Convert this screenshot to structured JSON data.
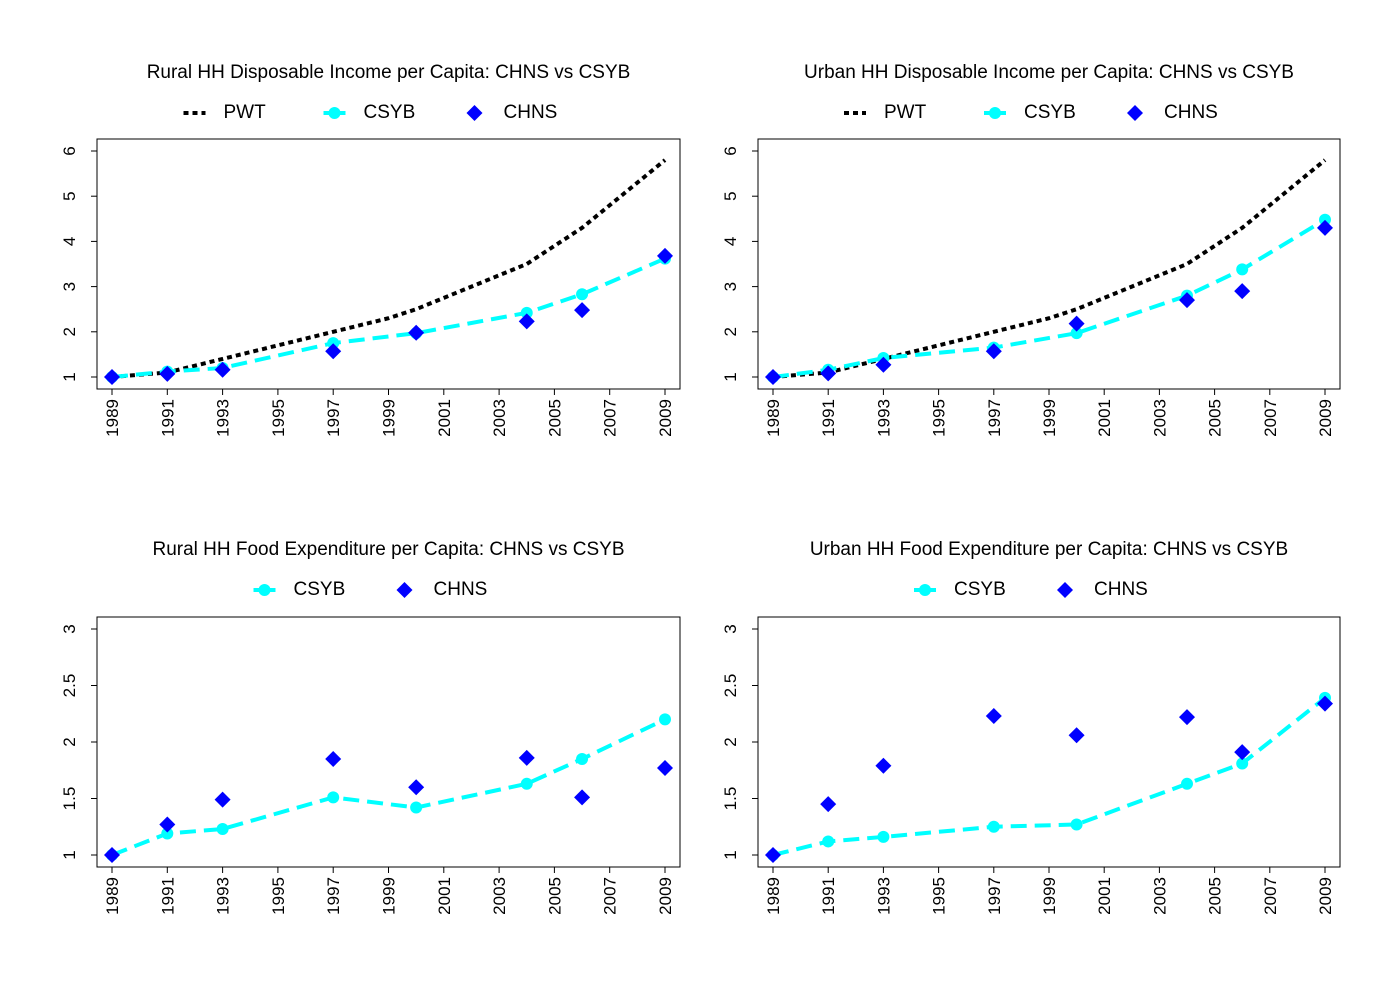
{
  "chart_data": [
    {
      "type": "line",
      "title": "Rural HH Disposable Income per Capita: CHNS vs CSYB",
      "xlabel": "",
      "ylabel": "",
      "xlim": [
        1989,
        2009
      ],
      "ylim": [
        1,
        6
      ],
      "x_ticks": [
        "1989",
        "1991",
        "1993",
        "1995",
        "1997",
        "1999",
        "2001",
        "2003",
        "2005",
        "2007",
        "2009"
      ],
      "y_ticks": [
        "1",
        "2",
        "3",
        "4",
        "5",
        "6"
      ],
      "legend": [
        "PWT",
        "CSYB",
        "CHNS"
      ],
      "legend_position": "top",
      "grid": false,
      "series": [
        {
          "name": "PWT",
          "style": "dotted-line",
          "color": "#000000",
          "x": [
            1989,
            1991,
            1993,
            1995,
            1997,
            1999,
            2000,
            2002,
            2004,
            2006,
            2009
          ],
          "y": [
            1.0,
            1.1,
            1.4,
            1.7,
            2.0,
            2.3,
            2.5,
            3.0,
            3.5,
            4.3,
            5.8
          ]
        },
        {
          "name": "CSYB",
          "style": "dashed-line-circles",
          "color": "#00FFFF",
          "x": [
            1989,
            1991,
            1993,
            1997,
            2000,
            2004,
            2006,
            2009
          ],
          "y": [
            1.0,
            1.12,
            1.2,
            1.75,
            1.97,
            2.42,
            2.83,
            3.62
          ]
        },
        {
          "name": "CHNS",
          "style": "diamonds",
          "color": "#0000FF",
          "x": [
            1989,
            1991,
            1993,
            1997,
            2000,
            2004,
            2006,
            2009
          ],
          "y": [
            1.0,
            1.07,
            1.16,
            1.57,
            1.98,
            2.23,
            2.48,
            3.68
          ]
        }
      ]
    },
    {
      "type": "line",
      "title": "Urban HH Disposable Income per Capita: CHNS vs CSYB",
      "xlabel": "",
      "ylabel": "",
      "xlim": [
        1989,
        2009
      ],
      "ylim": [
        1,
        6
      ],
      "x_ticks": [
        "1989",
        "1991",
        "1993",
        "1995",
        "1997",
        "1999",
        "2001",
        "2003",
        "2005",
        "2007",
        "2009"
      ],
      "y_ticks": [
        "1",
        "2",
        "3",
        "4",
        "5",
        "6"
      ],
      "legend": [
        "PWT",
        "CSYB",
        "CHNS"
      ],
      "legend_position": "top",
      "grid": false,
      "series": [
        {
          "name": "PWT",
          "style": "dotted-line",
          "color": "#000000",
          "x": [
            1989,
            1991,
            1993,
            1995,
            1997,
            1999,
            2000,
            2002,
            2004,
            2006,
            2009
          ],
          "y": [
            1.0,
            1.1,
            1.4,
            1.7,
            2.0,
            2.3,
            2.5,
            3.0,
            3.5,
            4.3,
            5.8
          ]
        },
        {
          "name": "CSYB",
          "style": "dashed-line-circles",
          "color": "#00FFFF",
          "x": [
            1989,
            1991,
            1993,
            1997,
            2000,
            2004,
            2006,
            2009
          ],
          "y": [
            1.0,
            1.16,
            1.42,
            1.65,
            1.97,
            2.8,
            3.38,
            4.48
          ]
        },
        {
          "name": "CHNS",
          "style": "diamonds",
          "color": "#0000FF",
          "x": [
            1989,
            1991,
            1993,
            1997,
            2000,
            2004,
            2006,
            2009
          ],
          "y": [
            1.0,
            1.08,
            1.27,
            1.57,
            2.18,
            2.7,
            2.9,
            4.3
          ]
        }
      ]
    },
    {
      "type": "line",
      "title": "Rural HH Food Expenditure per Capita: CHNS vs CSYB",
      "xlabel": "",
      "ylabel": "",
      "xlim": [
        1989,
        2009
      ],
      "ylim": [
        1,
        3
      ],
      "x_ticks": [
        "1989",
        "1991",
        "1993",
        "1995",
        "1997",
        "1999",
        "2001",
        "2003",
        "2005",
        "2007",
        "2009"
      ],
      "y_ticks": [
        "1",
        "1.5",
        "2",
        "2.5",
        "3"
      ],
      "legend": [
        "CSYB",
        "CHNS"
      ],
      "legend_position": "top",
      "grid": false,
      "series": [
        {
          "name": "CSYB",
          "style": "dashed-line-circles",
          "color": "#00FFFF",
          "x": [
            1989,
            1991,
            1993,
            1997,
            2000,
            2004,
            2006,
            2009
          ],
          "y": [
            1.0,
            1.19,
            1.23,
            1.51,
            1.42,
            1.63,
            1.85,
            2.2
          ]
        },
        {
          "name": "CHNS",
          "style": "diamonds",
          "color": "#0000FF",
          "x": [
            1989,
            1991,
            1993,
            1997,
            2000,
            2004,
            2006,
            2009
          ],
          "y": [
            1.0,
            1.27,
            1.49,
            1.85,
            1.6,
            1.86,
            1.51,
            1.77
          ]
        }
      ]
    },
    {
      "type": "line",
      "title": "Urban HH Food Expenditure per Capita: CHNS vs CSYB",
      "xlabel": "",
      "ylabel": "",
      "xlim": [
        1989,
        2009
      ],
      "ylim": [
        1,
        3
      ],
      "x_ticks": [
        "1989",
        "1991",
        "1993",
        "1995",
        "1997",
        "1999",
        "2001",
        "2003",
        "2005",
        "2007",
        "2009"
      ],
      "y_ticks": [
        "1",
        "1.5",
        "2",
        "2.5",
        "3"
      ],
      "legend": [
        "CSYB",
        "CHNS"
      ],
      "legend_position": "top",
      "grid": false,
      "series": [
        {
          "name": "CSYB",
          "style": "dashed-line-circles",
          "color": "#00FFFF",
          "x": [
            1989,
            1991,
            1993,
            1997,
            2000,
            2004,
            2006,
            2009
          ],
          "y": [
            1.0,
            1.12,
            1.16,
            1.25,
            1.27,
            1.63,
            1.81,
            2.39
          ]
        },
        {
          "name": "CHNS",
          "style": "diamonds",
          "color": "#0000FF",
          "x": [
            1989,
            1991,
            1993,
            1997,
            2000,
            2004,
            2006,
            2009
          ],
          "y": [
            1.0,
            1.45,
            1.79,
            2.23,
            2.06,
            2.22,
            1.91,
            2.34
          ]
        }
      ]
    }
  ]
}
